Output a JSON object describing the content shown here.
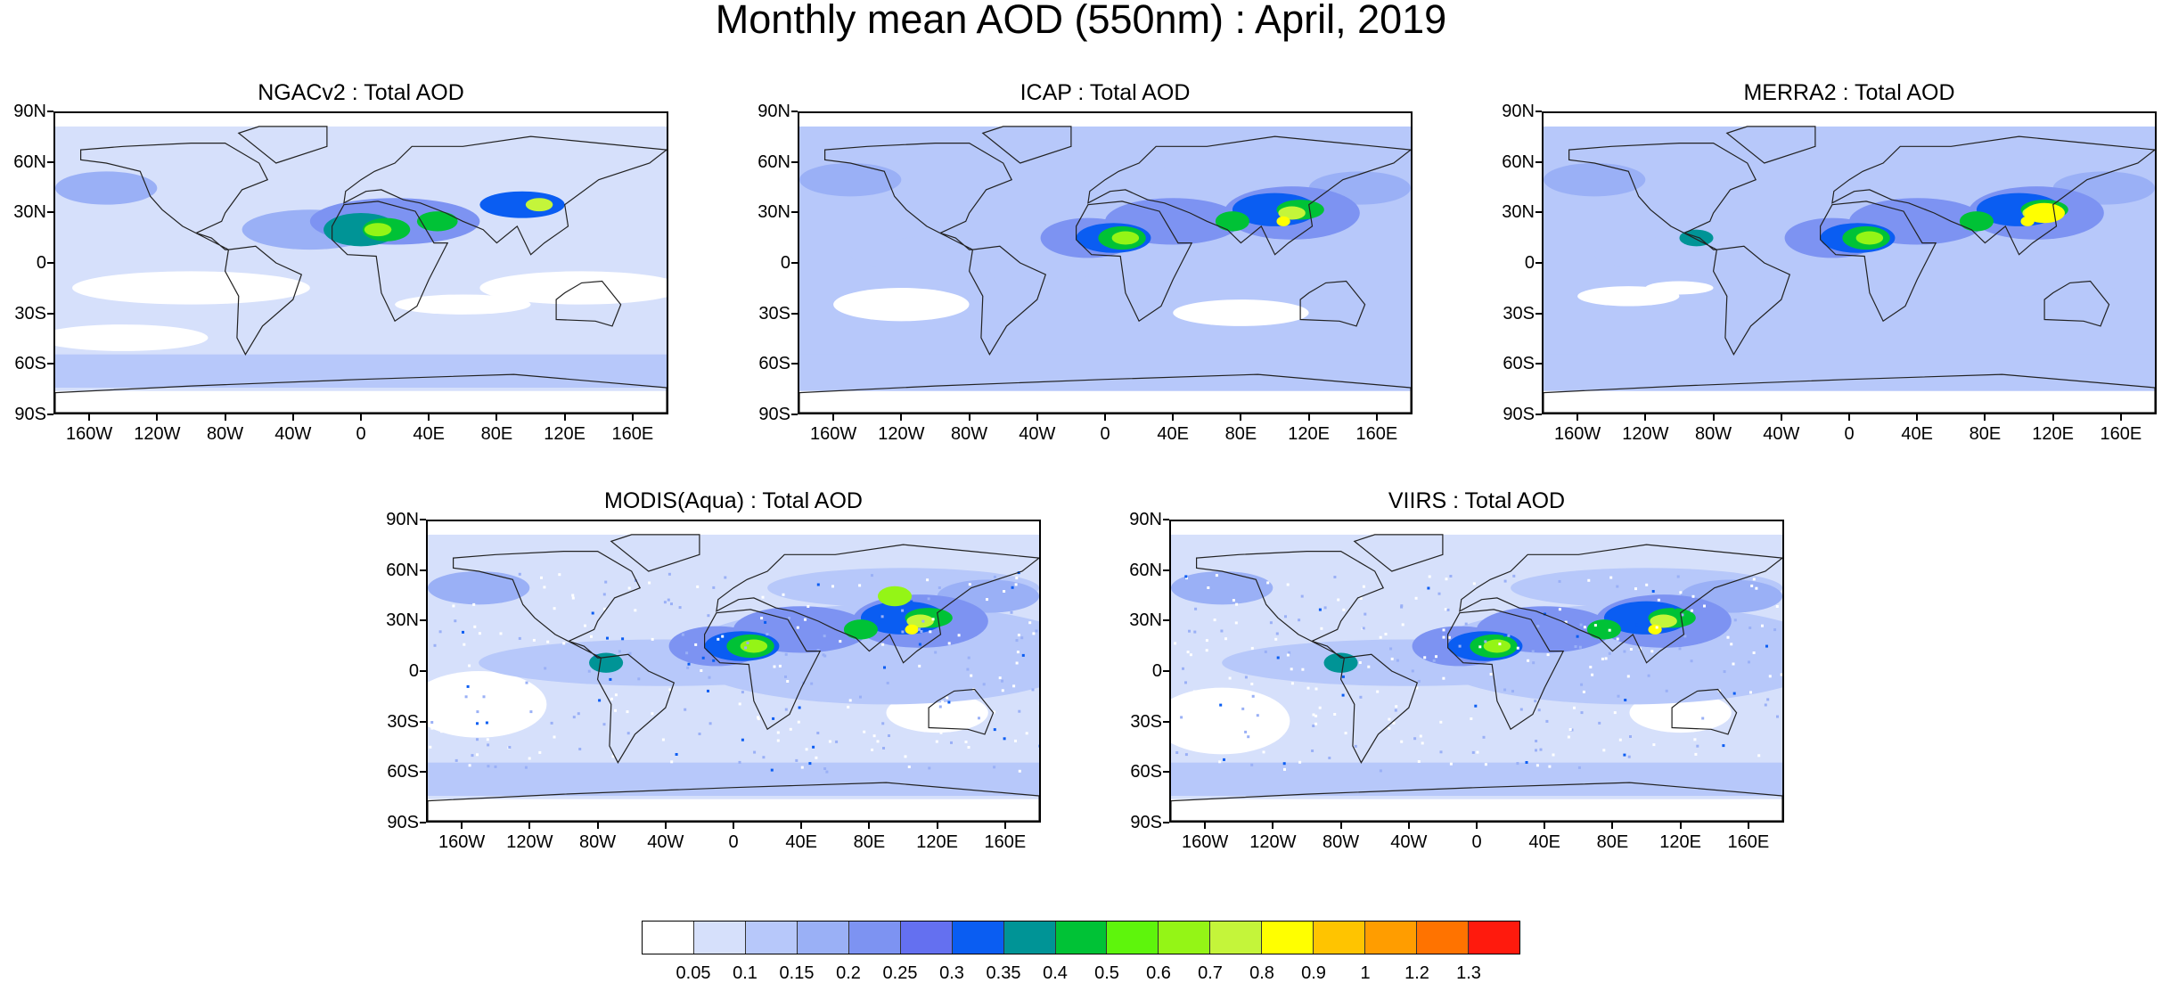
{
  "title": "Monthly mean AOD (550nm) : April, 2019",
  "lat_labels": [
    "90N",
    "60N",
    "30N",
    "0",
    "30S",
    "60S",
    "90S"
  ],
  "lon_labels": [
    "160W",
    "120W",
    "80W",
    "40W",
    "0",
    "40E",
    "80E",
    "120E",
    "160E"
  ],
  "panels": [
    {
      "id": "ngac",
      "title": "NGACv2 : Total AOD"
    },
    {
      "id": "icap",
      "title": "ICAP : Total AOD"
    },
    {
      "id": "merra2",
      "title": "MERRA2 : Total AOD"
    },
    {
      "id": "modis",
      "title": "MODIS(Aqua) : Total AOD"
    },
    {
      "id": "viirs",
      "title": "VIIRS : Total AOD"
    }
  ],
  "colorbar": {
    "labels": [
      "0.05",
      "0.1",
      "0.15",
      "0.2",
      "0.25",
      "0.3",
      "0.35",
      "0.4",
      "0.5",
      "0.6",
      "0.7",
      "0.8",
      "0.9",
      "1",
      "1.2",
      "1.3"
    ],
    "colors": [
      "#ffffff",
      "#d6e0fb",
      "#b7c8fa",
      "#9ab0f6",
      "#7d93f2",
      "#6470f0",
      "#0a5df2",
      "#009496",
      "#00c236",
      "#5ef50c",
      "#94f516",
      "#c4f53a",
      "#ffff00",
      "#ffc400",
      "#ff9d00",
      "#ff7300",
      "#ff1a0d"
    ]
  }
}
